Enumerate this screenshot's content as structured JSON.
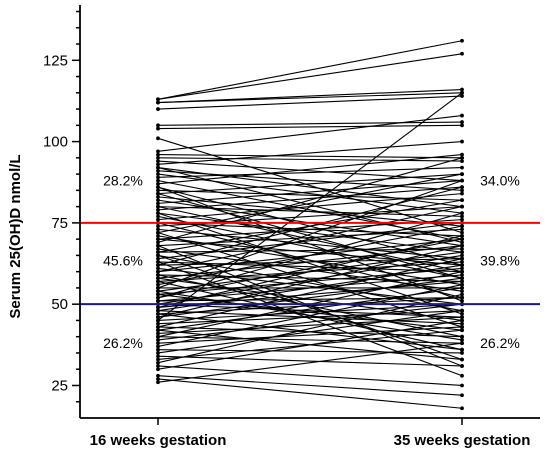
{
  "chart_data": {
    "type": "line",
    "title": "",
    "ylabel": "Serum 25(OH)D nmol/L",
    "xlabel": "",
    "categories": [
      "16 weeks gestation",
      "35 weeks gestation"
    ],
    "ylim": [
      15,
      142
    ],
    "yticks": [
      25,
      50,
      75,
      100,
      125
    ],
    "reference_lines": [
      {
        "value": 75,
        "color": "#ff0000"
      },
      {
        "value": 50,
        "color": "#1a1a8c"
      }
    ],
    "percentages": {
      "left": {
        "above_75": "28.2%",
        "between_50_75": "45.6%",
        "below_50": "26.2%"
      },
      "right": {
        "above_75": "34.0%",
        "between_50_75": "39.8%",
        "below_50": "26.2%"
      }
    },
    "pairs": [
      [
        113,
        131
      ],
      [
        113,
        127
      ],
      [
        112,
        116
      ],
      [
        112,
        115
      ],
      [
        110,
        114
      ],
      [
        105,
        106
      ],
      [
        104,
        105
      ],
      [
        101,
        72
      ],
      [
        97,
        108
      ],
      [
        96,
        95
      ],
      [
        95,
        94
      ],
      [
        94,
        88
      ],
      [
        93,
        100
      ],
      [
        92,
        80
      ],
      [
        91,
        85
      ],
      [
        90,
        78
      ],
      [
        89,
        92
      ],
      [
        88,
        70
      ],
      [
        87,
        96
      ],
      [
        86,
        62
      ],
      [
        85,
        82
      ],
      [
        84,
        90
      ],
      [
        83,
        74
      ],
      [
        82,
        68
      ],
      [
        81,
        88
      ],
      [
        80,
        60
      ],
      [
        80,
        77
      ],
      [
        79,
        86
      ],
      [
        78,
        66
      ],
      [
        77,
        58
      ],
      [
        76,
        84
      ],
      [
        75,
        71
      ],
      [
        75,
        52
      ],
      [
        74,
        80
      ],
      [
        73,
        64
      ],
      [
        72,
        90
      ],
      [
        71,
        56
      ],
      [
        70,
        76
      ],
      [
        70,
        62
      ],
      [
        69,
        95
      ],
      [
        68,
        73
      ],
      [
        67,
        54
      ],
      [
        66,
        82
      ],
      [
        66,
        67
      ],
      [
        65,
        48
      ],
      [
        64,
        75
      ],
      [
        63,
        60
      ],
      [
        62,
        86
      ],
      [
        62,
        64
      ],
      [
        61,
        50
      ],
      [
        60,
        70
      ],
      [
        60,
        80
      ],
      [
        59,
        57
      ],
      [
        58,
        68
      ],
      [
        58,
        45
      ],
      [
        57,
        63
      ],
      [
        56,
        74
      ],
      [
        55,
        55
      ],
      [
        55,
        88
      ],
      [
        54,
        66
      ],
      [
        53,
        42
      ],
      [
        53,
        61
      ],
      [
        52,
        70
      ],
      [
        52,
        78
      ],
      [
        51,
        52
      ],
      [
        51,
        59
      ],
      [
        50,
        46
      ],
      [
        50,
        65
      ],
      [
        49,
        71
      ],
      [
        49,
        57
      ],
      [
        48,
        62
      ],
      [
        48,
        44
      ],
      [
        47,
        52
      ],
      [
        47,
        36
      ],
      [
        46,
        58
      ],
      [
        46,
        68
      ],
      [
        45,
        50
      ],
      [
        45,
        115
      ],
      [
        44,
        48
      ],
      [
        43,
        64
      ],
      [
        43,
        40
      ],
      [
        42,
        55
      ],
      [
        42,
        33
      ],
      [
        41,
        46
      ],
      [
        40,
        60
      ],
      [
        40,
        38
      ],
      [
        39,
        50
      ],
      [
        38,
        43
      ],
      [
        37,
        56
      ],
      [
        36,
        35
      ],
      [
        35,
        48
      ],
      [
        34,
        31
      ],
      [
        33,
        42
      ],
      [
        32,
        53
      ],
      [
        31,
        25
      ],
      [
        30,
        45
      ],
      [
        28,
        22
      ],
      [
        27,
        18
      ],
      [
        26,
        38
      ],
      [
        65,
        33
      ],
      [
        72,
        43
      ],
      [
        68,
        31
      ],
      [
        78,
        47
      ],
      [
        84,
        58
      ],
      [
        57,
        36
      ],
      [
        63,
        28
      ],
      [
        86,
        51
      ],
      [
        92,
        69
      ],
      [
        59,
        40
      ],
      [
        54,
        39
      ]
    ]
  }
}
